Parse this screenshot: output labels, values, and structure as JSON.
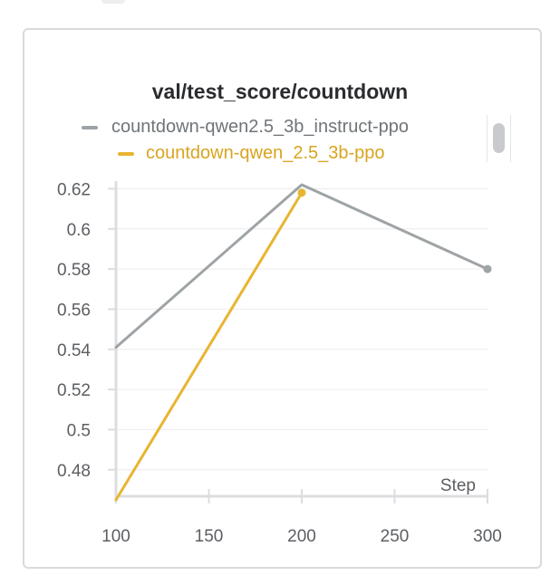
{
  "panel": {
    "legend_scrollbar": "legend-scrollbar"
  },
  "chart_data": {
    "type": "line",
    "title": "val/test_score/countdown",
    "xlabel": "Step",
    "ylabel": "",
    "xlim": [
      100,
      300
    ],
    "ylim": [
      0.465,
      0.622
    ],
    "x_ticks": [
      100,
      150,
      200,
      250,
      300
    ],
    "x_tick_labels": [
      "100",
      "150",
      "200",
      "250",
      "300"
    ],
    "y_ticks": [
      0.48,
      0.5,
      0.52,
      0.54,
      0.56,
      0.58,
      0.6,
      0.62
    ],
    "y_tick_labels": [
      "0.48",
      "0.5",
      "0.52",
      "0.54",
      "0.56",
      "0.58",
      "0.6",
      "0.62"
    ],
    "grid": true,
    "legend_position": "top",
    "series": [
      {
        "name": "countdown-qwen2.5_3b_instruct-ppo",
        "color": "#9ea3a6",
        "x": [
          100,
          200,
          300
        ],
        "y": [
          0.541,
          0.622,
          0.58
        ]
      },
      {
        "name": "countdown-qwen_2.5_3b-ppo",
        "color": "#e8b530",
        "label_color": "#d9a420",
        "x": [
          100,
          200
        ],
        "y": [
          0.465,
          0.618
        ]
      }
    ]
  }
}
